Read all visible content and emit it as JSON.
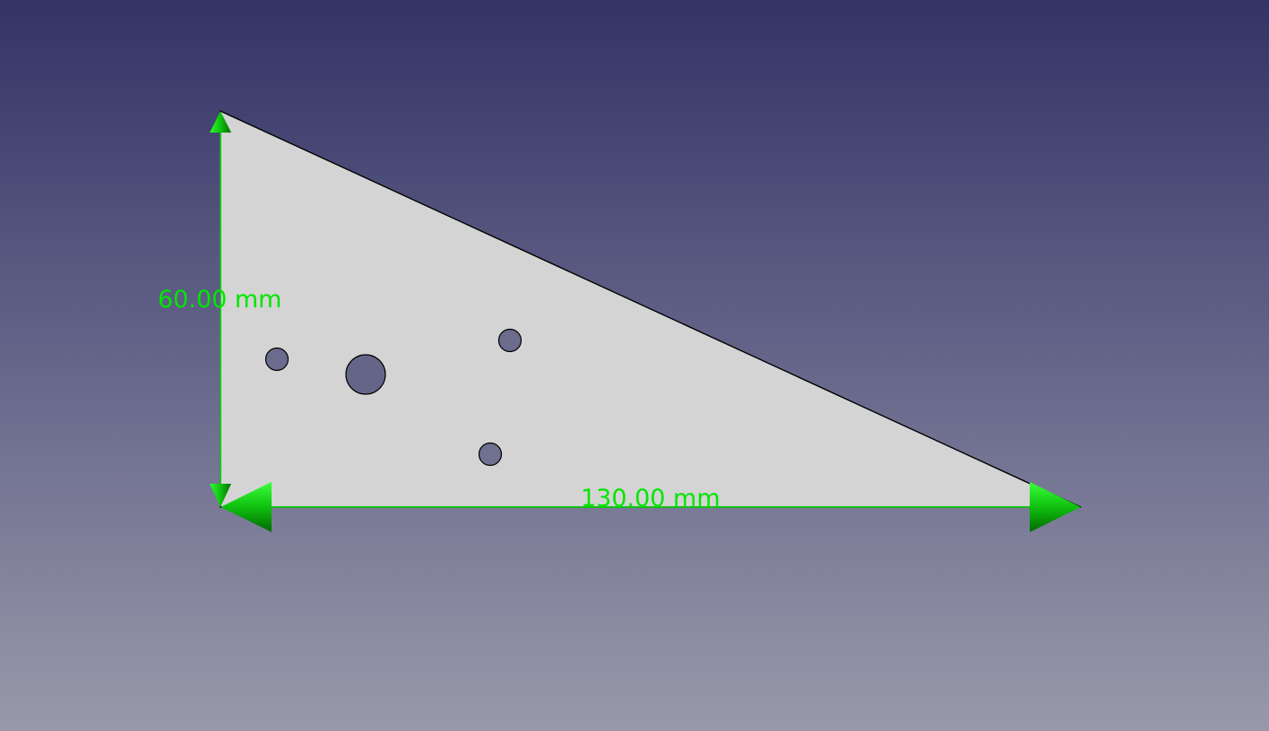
{
  "viewport": {
    "background_top_color": "#333366",
    "background_bottom_color": "#9999aa"
  },
  "part": {
    "shape": "right-triangle plate with four holes",
    "face_color": "#d4d4d4",
    "edge_color": "#000000",
    "hole_color": "#6b6b8e"
  },
  "dimensions": {
    "vertical": {
      "label": "60.00 mm"
    },
    "horizontal": {
      "label": "130.00 mm"
    },
    "color": "#00e600"
  }
}
